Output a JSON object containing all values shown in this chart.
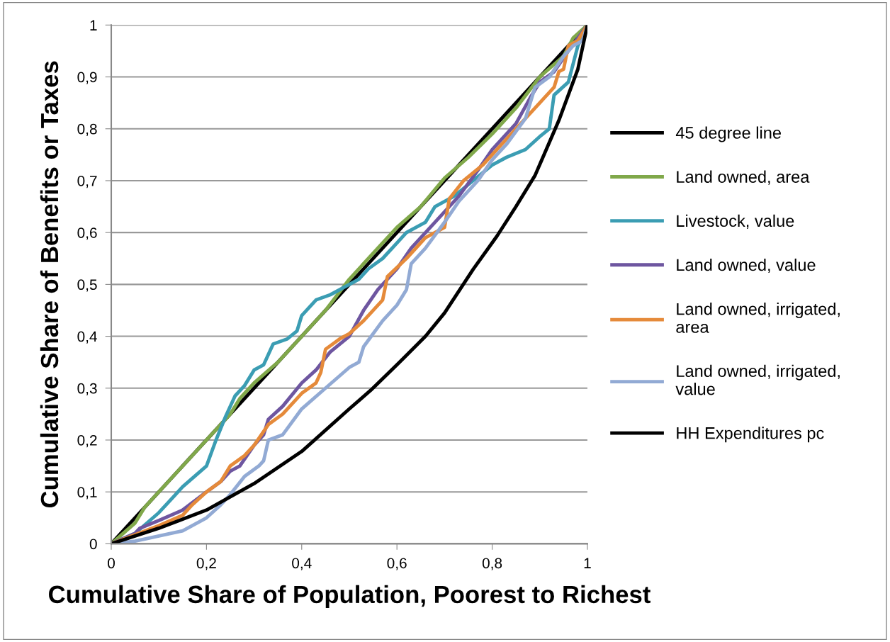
{
  "chart_data": {
    "type": "line",
    "xlabel": "Cumulative Share of Population, Poorest to Richest",
    "ylabel": "Cumulative Share of Benefits or Taxes",
    "xlim": [
      0,
      1
    ],
    "ylim": [
      0,
      1
    ],
    "xticks": [
      0,
      {
        "value": 0.2,
        "label": "0,2"
      },
      {
        "value": 0.4,
        "label": "0,4"
      },
      {
        "value": 0.6,
        "label": "0,6"
      },
      {
        "value": 0.8,
        "label": "0,8"
      },
      1
    ],
    "yticks": [
      0,
      {
        "value": 0.1,
        "label": "0,1"
      },
      {
        "value": 0.2,
        "label": "0,2"
      },
      {
        "value": 0.3,
        "label": "0,3"
      },
      {
        "value": 0.4,
        "label": "0,4"
      },
      {
        "value": 0.5,
        "label": "0,5"
      },
      {
        "value": 0.6,
        "label": "0,6"
      },
      {
        "value": 0.7,
        "label": "0,7"
      },
      {
        "value": 0.8,
        "label": "0,8"
      },
      {
        "value": 0.9,
        "label": "0,9"
      },
      1
    ],
    "grid": "y",
    "legend": "right",
    "marker": "none",
    "line_style": "solid",
    "series": [
      {
        "name": "45 degree line",
        "color": "#000000",
        "x": [
          0,
          1
        ],
        "values": [
          0,
          1
        ]
      },
      {
        "name": "Land owned, area",
        "color": "#80a84a",
        "x": [
          0,
          0.05,
          0.07,
          0.1,
          0.15,
          0.2,
          0.25,
          0.27,
          0.3,
          0.35,
          0.4,
          0.45,
          0.5,
          0.55,
          0.6,
          0.65,
          0.7,
          0.75,
          0.8,
          0.85,
          0.9,
          0.95,
          0.97,
          1
        ],
        "values": [
          0,
          0.04,
          0.07,
          0.1,
          0.15,
          0.2,
          0.25,
          0.28,
          0.31,
          0.35,
          0.4,
          0.45,
          0.51,
          0.56,
          0.61,
          0.65,
          0.705,
          0.745,
          0.79,
          0.84,
          0.9,
          0.94,
          0.975,
          1
        ]
      },
      {
        "name": "Livestock, value",
        "color": "#3b9db3",
        "x": [
          0,
          0.05,
          0.1,
          0.12,
          0.15,
          0.2,
          0.22,
          0.24,
          0.26,
          0.28,
          0.3,
          0.32,
          0.34,
          0.37,
          0.39,
          0.4,
          0.43,
          0.46,
          0.5,
          0.52,
          0.54,
          0.57,
          0.6,
          0.62,
          0.66,
          0.68,
          0.72,
          0.76,
          0.8,
          0.83,
          0.87,
          0.9,
          0.92,
          0.93,
          0.96,
          0.98,
          1
        ],
        "values": [
          0,
          0.02,
          0.06,
          0.08,
          0.11,
          0.15,
          0.2,
          0.245,
          0.285,
          0.305,
          0.335,
          0.345,
          0.385,
          0.395,
          0.41,
          0.44,
          0.47,
          0.48,
          0.5,
          0.51,
          0.53,
          0.55,
          0.58,
          0.6,
          0.62,
          0.65,
          0.67,
          0.7,
          0.73,
          0.745,
          0.76,
          0.785,
          0.8,
          0.865,
          0.89,
          0.96,
          1
        ]
      },
      {
        "name": "Land owned, value",
        "color": "#6e56a0",
        "x": [
          0,
          0.05,
          0.06,
          0.1,
          0.15,
          0.2,
          0.23,
          0.25,
          0.27,
          0.3,
          0.32,
          0.33,
          0.36,
          0.4,
          0.43,
          0.46,
          0.5,
          0.53,
          0.56,
          0.6,
          0.63,
          0.67,
          0.7,
          0.73,
          0.77,
          0.8,
          0.85,
          0.88,
          0.9,
          0.93,
          0.96,
          1
        ],
        "values": [
          0,
          0.02,
          0.03,
          0.045,
          0.065,
          0.1,
          0.12,
          0.14,
          0.15,
          0.19,
          0.21,
          0.24,
          0.265,
          0.31,
          0.335,
          0.37,
          0.4,
          0.45,
          0.49,
          0.53,
          0.57,
          0.61,
          0.64,
          0.67,
          0.72,
          0.76,
          0.81,
          0.86,
          0.89,
          0.91,
          0.95,
          1
        ]
      },
      {
        "name": "Land owned, irrigated, area",
        "color": "#e58a3a",
        "x": [
          0,
          0.1,
          0.15,
          0.17,
          0.2,
          0.23,
          0.25,
          0.28,
          0.3,
          0.33,
          0.36,
          0.4,
          0.43,
          0.44,
          0.45,
          0.48,
          0.5,
          0.53,
          0.57,
          0.58,
          0.62,
          0.66,
          0.7,
          0.71,
          0.74,
          0.78,
          0.82,
          0.86,
          0.9,
          0.93,
          0.94,
          0.95,
          0.96,
          0.98,
          1
        ],
        "values": [
          0,
          0.035,
          0.055,
          0.075,
          0.1,
          0.12,
          0.15,
          0.17,
          0.19,
          0.23,
          0.25,
          0.29,
          0.31,
          0.33,
          0.375,
          0.395,
          0.405,
          0.43,
          0.47,
          0.515,
          0.55,
          0.59,
          0.61,
          0.665,
          0.7,
          0.73,
          0.77,
          0.81,
          0.85,
          0.88,
          0.91,
          0.915,
          0.96,
          0.97,
          1
        ]
      },
      {
        "name": "Land owned, irrigated, value",
        "color": "#92aad4",
        "x": [
          0,
          0.05,
          0.1,
          0.15,
          0.2,
          0.23,
          0.25,
          0.28,
          0.31,
          0.32,
          0.33,
          0.36,
          0.4,
          0.45,
          0.5,
          0.52,
          0.53,
          0.57,
          0.6,
          0.62,
          0.63,
          0.66,
          0.7,
          0.73,
          0.77,
          0.8,
          0.83,
          0.87,
          0.89,
          0.92,
          0.95,
          0.97,
          0.99,
          1
        ],
        "values": [
          0,
          0.005,
          0.015,
          0.025,
          0.05,
          0.075,
          0.095,
          0.13,
          0.15,
          0.16,
          0.2,
          0.21,
          0.26,
          0.3,
          0.34,
          0.35,
          0.38,
          0.43,
          0.46,
          0.49,
          0.54,
          0.57,
          0.62,
          0.66,
          0.7,
          0.74,
          0.77,
          0.82,
          0.88,
          0.9,
          0.94,
          0.96,
          0.97,
          1
        ]
      },
      {
        "name": "HH Expenditures pc",
        "color": "#000000",
        "x": [
          0,
          0.1,
          0.2,
          0.3,
          0.4,
          0.5,
          0.545,
          0.6,
          0.66,
          0.7,
          0.76,
          0.81,
          0.85,
          0.89,
          0.94,
          0.98,
          1
        ],
        "values": [
          0,
          0.03,
          0.065,
          0.116,
          0.178,
          0.26,
          0.296,
          0.345,
          0.4,
          0.445,
          0.529,
          0.593,
          0.65,
          0.71,
          0.816,
          0.915,
          1
        ]
      }
    ]
  }
}
